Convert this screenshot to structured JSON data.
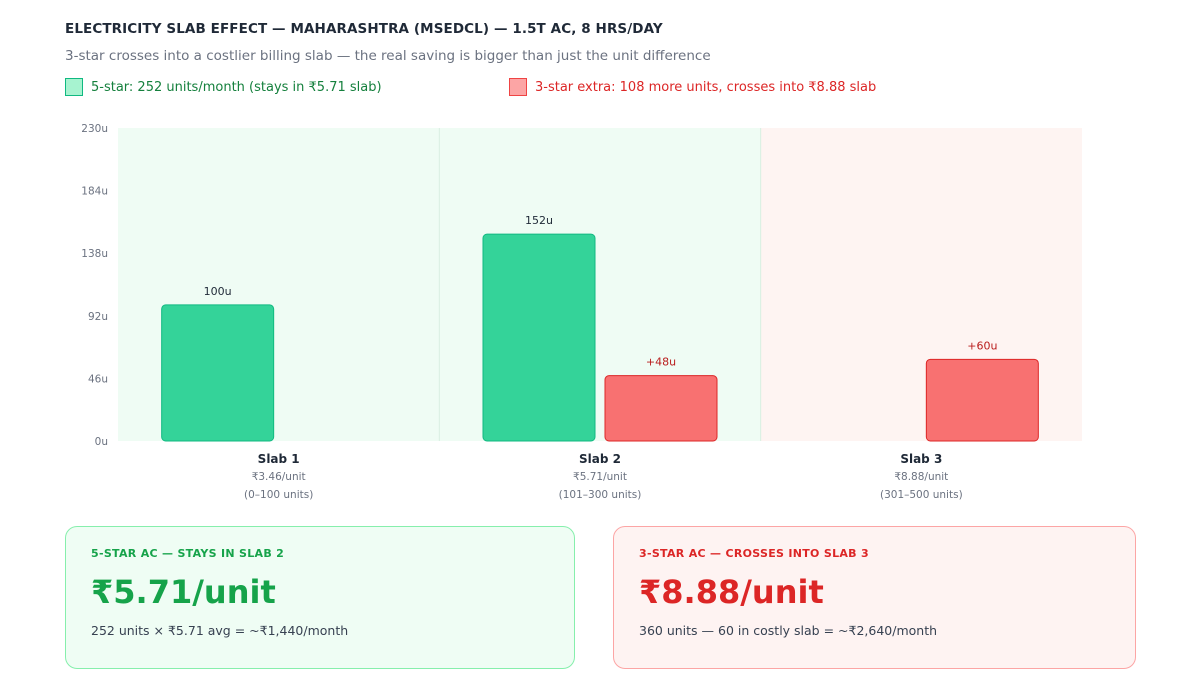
{
  "header": {
    "title": "ELECTRICITY SLAB EFFECT — MAHARASHTRA (MSEDCL) — 1.5T AC, 8 HRS/DAY",
    "subtitle": "3-star crosses into a costlier billing slab — the real saving is bigger than just the unit difference"
  },
  "legend": {
    "five_star": "5-star: 252 units/month (stays in ₹5.71 slab)",
    "three_star": "3-star extra: 108 more units, crosses into ₹8.88 slab"
  },
  "colors": {
    "five_star_bar": "#34d399",
    "three_star_bar": "#f87171",
    "slab_green_bg": "#effcf4",
    "slab_red_bg": "#fef4f2"
  },
  "chart_data": {
    "type": "bar",
    "title": "ELECTRICITY SLAB EFFECT — MAHARASHTRA (MSEDCL) — 1.5T AC, 8 HRS/DAY",
    "ylim": [
      0,
      230
    ],
    "y_ticks": [
      0,
      46,
      92,
      138,
      184,
      230
    ],
    "y_tick_labels": [
      "0u",
      "46u",
      "92u",
      "138u",
      "184u",
      "230u"
    ],
    "grid": false,
    "legend_position": "top-left",
    "categories": [
      {
        "name": "Slab 1",
        "rate": "₹3.46/unit",
        "range": "(0–100 units)",
        "background": "green"
      },
      {
        "name": "Slab 2",
        "rate": "₹5.71/unit",
        "range": "(101–300 units)",
        "background": "green"
      },
      {
        "name": "Slab 3",
        "rate": "₹8.88/unit",
        "range": "(301–500 units)",
        "background": "red"
      }
    ],
    "series": [
      {
        "key": "five_star",
        "values": [
          100,
          152,
          0
        ],
        "labels": [
          "100u",
          "152u",
          ""
        ]
      },
      {
        "key": "three_star_extra",
        "values": [
          0,
          48,
          60
        ],
        "labels": [
          "",
          "+48u",
          "+60u"
        ]
      }
    ]
  },
  "cards": {
    "five_star": {
      "label": "5-STAR AC — STAYS IN SLAB 2",
      "value": "₹5.71/unit",
      "note": "252 units × ₹5.71 avg = ~₹1,440/month"
    },
    "three_star": {
      "label": "3-STAR AC — CROSSES INTO SLAB 3",
      "value": "₹8.88/unit",
      "note": "360 units — 60 in costly slab = ~₹2,640/month"
    }
  }
}
